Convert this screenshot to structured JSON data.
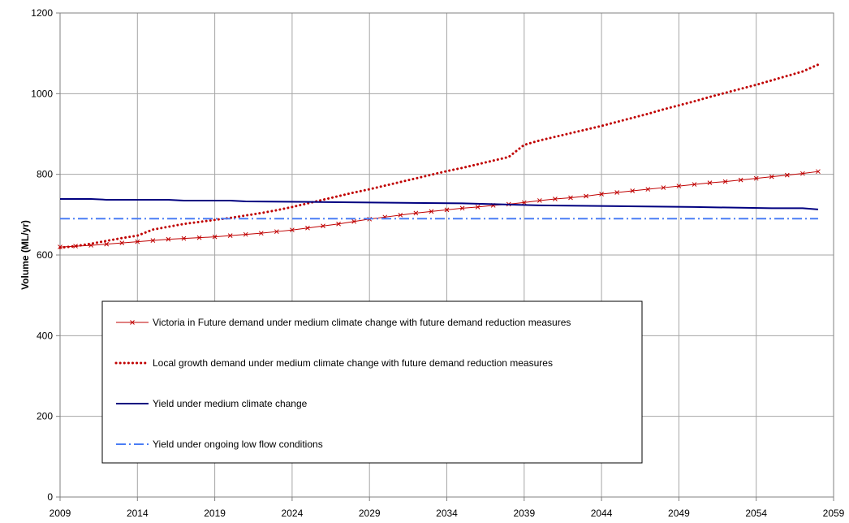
{
  "chart_data": {
    "type": "line",
    "title": "",
    "xlabel": "",
    "ylabel": "Volume (ML/yr)",
    "xlim": [
      2009,
      2059
    ],
    "ylim": [
      0,
      1200
    ],
    "x_ticks": [
      "2009",
      "2014",
      "2019",
      "2024",
      "2029",
      "2034",
      "2039",
      "2044",
      "2049",
      "2054",
      "2059"
    ],
    "y_ticks": [
      "0",
      "200",
      "400",
      "600",
      "800",
      "1000",
      "1200"
    ],
    "grid": true,
    "legend_position": "lower-left inside plot",
    "series": [
      {
        "name": "Victoria in Future demand under medium climate change with future demand reduction measures",
        "color": "#c00000",
        "style": "solid-x-markers",
        "x": [
          2009,
          2010,
          2011,
          2012,
          2013,
          2014,
          2015,
          2016,
          2017,
          2018,
          2019,
          2020,
          2021,
          2022,
          2023,
          2024,
          2025,
          2026,
          2027,
          2028,
          2029,
          2030,
          2031,
          2032,
          2033,
          2034,
          2035,
          2036,
          2037,
          2038,
          2039,
          2040,
          2041,
          2042,
          2043,
          2044,
          2045,
          2046,
          2047,
          2048,
          2049,
          2050,
          2051,
          2052,
          2053,
          2054,
          2055,
          2056,
          2057,
          2058
        ],
        "values": [
          620,
          622,
          624,
          627,
          630,
          633,
          636,
          639,
          641,
          643,
          645,
          648,
          651,
          654,
          658,
          662,
          667,
          672,
          677,
          683,
          689,
          694,
          699,
          704,
          708,
          712,
          716,
          719,
          723,
          726,
          730,
          735,
          739,
          742,
          746,
          751,
          755,
          759,
          763,
          767,
          771,
          775,
          779,
          782,
          786,
          790,
          794,
          798,
          802,
          807
        ]
      },
      {
        "name": "Local growth demand under medium climate change with future demand reduction measures",
        "color": "#c00000",
        "style": "dotted",
        "x": [
          2009,
          2010,
          2011,
          2012,
          2013,
          2014,
          2015,
          2016,
          2017,
          2018,
          2019,
          2020,
          2021,
          2022,
          2023,
          2024,
          2025,
          2026,
          2027,
          2028,
          2029,
          2030,
          2031,
          2032,
          2033,
          2034,
          2035,
          2036,
          2037,
          2038,
          2039,
          2040,
          2041,
          2042,
          2043,
          2044,
          2045,
          2046,
          2047,
          2048,
          2049,
          2050,
          2051,
          2052,
          2053,
          2054,
          2055,
          2056,
          2057,
          2058
        ],
        "values": [
          618,
          622,
          628,
          635,
          642,
          648,
          663,
          670,
          677,
          682,
          687,
          692,
          698,
          704,
          711,
          719,
          728,
          737,
          746,
          755,
          763,
          772,
          781,
          790,
          799,
          808,
          816,
          825,
          834,
          843,
          873,
          884,
          893,
          902,
          911,
          920,
          930,
          940,
          950,
          961,
          971,
          981,
          992,
          1002,
          1012,
          1022,
          1033,
          1044,
          1055,
          1072
        ]
      },
      {
        "name": "Yield under medium climate change",
        "color": "#000080",
        "style": "solid",
        "x": [
          2009,
          2011,
          2012,
          2016,
          2017,
          2020,
          2021,
          2035,
          2040,
          2050,
          2055,
          2057,
          2058
        ],
        "values": [
          739,
          739,
          737,
          737,
          735,
          735,
          733,
          728,
          723,
          719,
          716,
          716,
          713
        ]
      },
      {
        "name": "Yield under ongoing low flow conditions",
        "color": "#4a7df5",
        "style": "dash-dot",
        "x": [
          2009,
          2058
        ],
        "values": [
          690,
          690
        ]
      }
    ]
  }
}
